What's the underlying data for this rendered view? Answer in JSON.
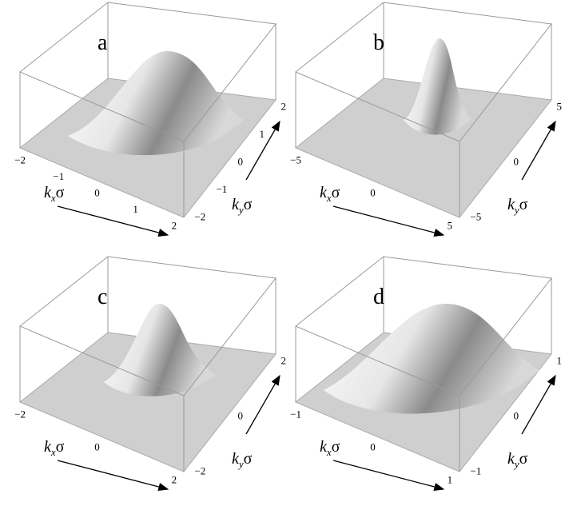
{
  "panels": [
    {
      "label": "a",
      "x_ticks": [
        "−2",
        "−1",
        "0",
        "1",
        "2"
      ],
      "y_ticks": [
        "−2",
        "−1",
        "0",
        "1",
        "2"
      ],
      "x_axis_label": {
        "base": "k",
        "sub": "x",
        "tail": "σ"
      },
      "y_axis_label": {
        "base": "k",
        "sub": "y",
        "tail": "σ"
      }
    },
    {
      "label": "b",
      "x_ticks": [
        "−5",
        "0",
        "5"
      ],
      "y_ticks": [
        "−5",
        "0",
        "5"
      ],
      "x_axis_label": {
        "base": "k",
        "sub": "x",
        "tail": "σ"
      },
      "y_axis_label": {
        "base": "k",
        "sub": "y",
        "tail": "σ"
      }
    },
    {
      "label": "c",
      "x_ticks": [
        "−2",
        "0",
        "2"
      ],
      "y_ticks": [
        "−2",
        "0",
        "2"
      ],
      "x_axis_label": {
        "base": "k",
        "sub": "x",
        "tail": "σ"
      },
      "y_axis_label": {
        "base": "k",
        "sub": "y",
        "tail": "σ"
      }
    },
    {
      "label": "d",
      "x_ticks": [
        "−1",
        "0",
        "1"
      ],
      "y_ticks": [
        "−1",
        "0",
        "1"
      ],
      "x_axis_label": {
        "base": "k",
        "sub": "x",
        "tail": "σ"
      },
      "y_axis_label": {
        "base": "k",
        "sub": "y",
        "tail": "σ"
      }
    }
  ]
}
